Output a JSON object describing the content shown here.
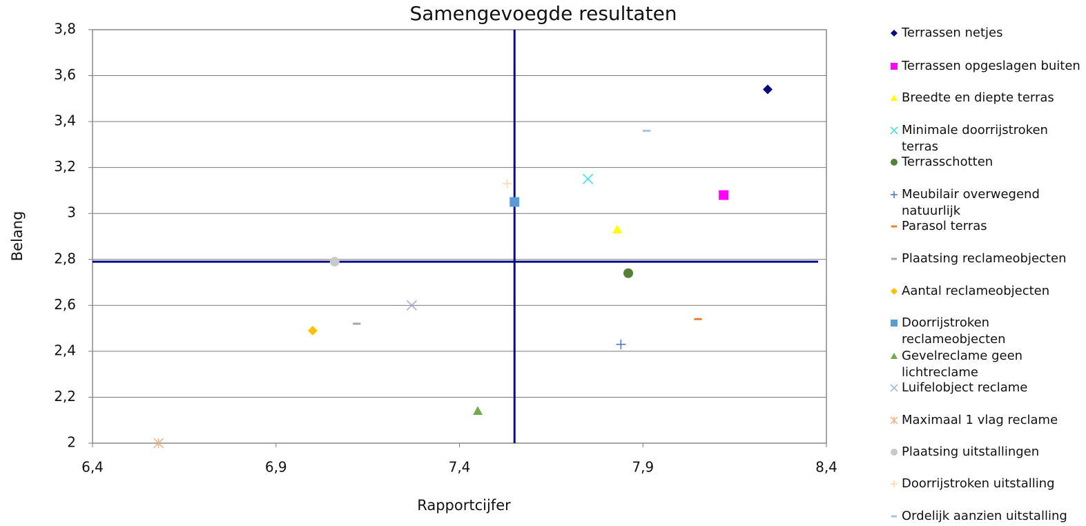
{
  "chart_data": {
    "type": "scatter",
    "title": "Samengevoegde resultaten",
    "x_label": "Rapportcijfer",
    "y_label": "Belang",
    "xlim": [
      6.4,
      8.4
    ],
    "xticks": [
      {
        "value": 6.4,
        "label": "6,4"
      },
      {
        "value": 6.9,
        "label": "6,9"
      },
      {
        "value": 7.4,
        "label": "7,4"
      },
      {
        "value": 7.9,
        "label": "7,9"
      },
      {
        "value": 8.4,
        "label": "8,4"
      }
    ],
    "ylim": [
      2,
      3.8
    ],
    "yticks": [
      2,
      {
        "value": 2.2,
        "label": "2,2"
      },
      {
        "value": 2.4,
        "label": "2,4"
      },
      {
        "value": 2.6,
        "label": "2,6"
      },
      {
        "value": 2.8,
        "label": "2,8"
      },
      3,
      {
        "value": 3.2,
        "label": "3,2"
      },
      {
        "value": 3.4,
        "label": "3,4"
      },
      {
        "value": 3.6,
        "label": "3,6"
      },
      {
        "value": 3.8,
        "label": "3,8"
      }
    ],
    "grid": true,
    "legend": "right",
    "reference_lines": {
      "x": 7.55,
      "y": 2.79,
      "color": "#0a0a80"
    },
    "series": [
      {
        "name": "Terrassen netjes",
        "color": "#0a0a80",
        "marker": "diamond",
        "x": 8.24,
        "y": 3.54
      },
      {
        "name": "Terrassen opgeslagen buiten",
        "color": "#ff00ff",
        "marker": "square",
        "x": 8.12,
        "y": 3.08
      },
      {
        "name": "Breedte en diepte terras",
        "color": "#ffff00",
        "marker": "triangle",
        "x": 7.83,
        "y": 2.93
      },
      {
        "name": "Minimale doorrijstroken terras",
        "color": "#33e0f0",
        "marker": "x",
        "x": 7.75,
        "y": 3.15
      },
      {
        "name": "Terrasschotten",
        "color": "#548235",
        "marker": "circle",
        "x": 7.86,
        "y": 2.74
      },
      {
        "name": "Meubilair overwegend natuurlijk",
        "color": "#4472c4",
        "marker": "plus",
        "x": 7.84,
        "y": 2.43
      },
      {
        "name": "Parasol terras",
        "color": "#ed7d31",
        "marker": "dash",
        "x": 8.05,
        "y": 2.54
      },
      {
        "name": "Plaatsing reclameobjecten",
        "color": "#a5a5a5",
        "marker": "dash",
        "x": 7.12,
        "y": 2.52
      },
      {
        "name": "Aantal reclameobjecten",
        "color": "#ffc000",
        "marker": "diamond",
        "x": 7.0,
        "y": 2.49
      },
      {
        "name": "Doorrijstroken reclameobjecten",
        "color": "#5b9bd5",
        "marker": "square",
        "x": 7.55,
        "y": 3.05
      },
      {
        "name": "Gevelreclame geen lichtreclame",
        "color": "#70ad47",
        "marker": "triangle",
        "x": 7.45,
        "y": 2.14
      },
      {
        "name": "Luifelobject reclame",
        "color": "#9dafdc",
        "marker": "x",
        "x": 7.27,
        "y": 2.6
      },
      {
        "name": "Maximaal 1 vlag reclame",
        "color": "#f4b183",
        "marker": "asterisk",
        "x": 6.58,
        "y": 2.0
      },
      {
        "name": "Plaatsing uitstallingen",
        "color": "#c9c9c9",
        "marker": "circle",
        "x": 7.06,
        "y": 2.79
      },
      {
        "name": "Doorrijstroken uitstalling",
        "color": "#ffd9a6",
        "marker": "plus",
        "x": 7.53,
        "y": 3.13
      },
      {
        "name": "Ordelijk aanzien uitstalling",
        "color": "#a9c4e8",
        "marker": "dash",
        "x": 7.91,
        "y": 3.36
      }
    ]
  }
}
